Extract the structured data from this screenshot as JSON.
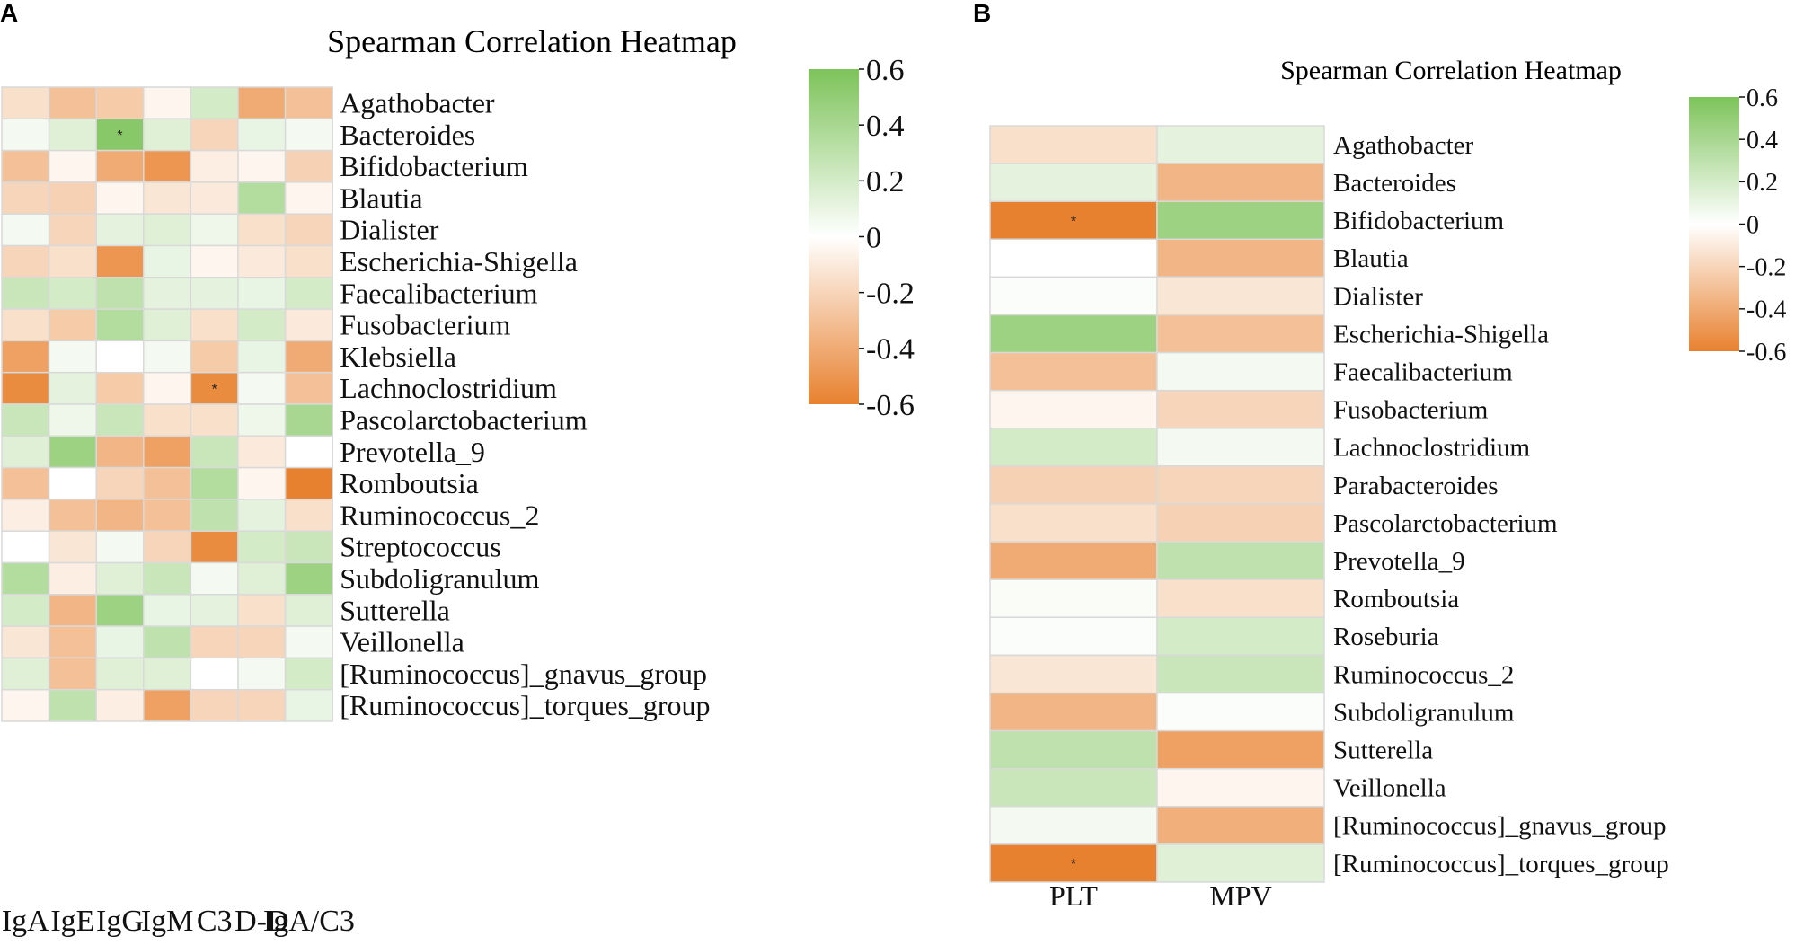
{
  "figure": {
    "panel_a_label": "A",
    "panel_b_label": "B"
  },
  "colors": {
    "positive": "#7DC35A",
    "neutral": "#FFFFFF",
    "negative": "#E8812F",
    "grid": "#D9D9D9",
    "star": "#222222"
  },
  "chart_data": [
    {
      "type": "heatmap",
      "panel": "A",
      "title": "Spearman Correlation Heatmap",
      "columns": [
        "IgA",
        "IgE",
        "IgG",
        "IgM",
        "C3",
        "D-D",
        "IgA/C3"
      ],
      "rows": [
        "Agathobacter",
        "Bacteroides",
        "Bifidobacterium",
        "Blautia",
        "Dialister",
        "Escherichia-Shigella",
        "Faecalibacterium",
        "Fusobacterium",
        "Klebsiella",
        "Lachnoclostridium",
        "Pascolarctobacterium",
        "Prevotella_9",
        "Romboutsia",
        "Ruminococcus_2",
        "Streptococcus",
        "Subdoligranulum",
        "Sutterella",
        "Veillonella",
        "[Ruminococcus]_gnavus_group",
        "[Ruminococcus]_torques_group"
      ],
      "values": [
        [
          -0.15,
          -0.3,
          -0.25,
          -0.05,
          0.2,
          -0.4,
          -0.3
        ],
        [
          0.05,
          0.15,
          0.55,
          0.15,
          -0.2,
          0.1,
          0.05
        ],
        [
          -0.3,
          -0.05,
          -0.4,
          -0.5,
          -0.08,
          -0.05,
          -0.22
        ],
        [
          -0.2,
          -0.22,
          -0.05,
          -0.12,
          -0.1,
          0.35,
          -0.05
        ],
        [
          0.05,
          -0.2,
          0.12,
          0.15,
          0.08,
          -0.15,
          -0.2
        ],
        [
          -0.2,
          -0.15,
          -0.5,
          0.1,
          -0.05,
          -0.1,
          -0.15
        ],
        [
          0.25,
          0.2,
          0.3,
          0.12,
          0.12,
          0.1,
          0.2
        ],
        [
          -0.15,
          -0.25,
          0.35,
          0.15,
          -0.15,
          0.2,
          -0.1
        ],
        [
          -0.45,
          0.05,
          0.0,
          0.05,
          -0.25,
          0.1,
          -0.4
        ],
        [
          -0.55,
          0.12,
          -0.25,
          -0.05,
          -0.55,
          0.05,
          -0.3
        ],
        [
          0.25,
          0.08,
          0.25,
          -0.15,
          -0.15,
          0.08,
          0.4
        ],
        [
          0.15,
          0.45,
          -0.35,
          -0.45,
          0.25,
          -0.1,
          0.0
        ],
        [
          -0.3,
          0.0,
          -0.2,
          -0.3,
          0.35,
          -0.05,
          -0.6
        ],
        [
          -0.08,
          -0.3,
          -0.35,
          -0.3,
          0.3,
          0.12,
          -0.15
        ],
        [
          0.0,
          -0.12,
          0.05,
          -0.2,
          -0.55,
          0.2,
          0.25
        ],
        [
          0.35,
          -0.08,
          0.15,
          0.25,
          0.05,
          0.15,
          0.45
        ],
        [
          0.2,
          -0.35,
          0.45,
          0.1,
          0.12,
          -0.15,
          0.15
        ],
        [
          -0.12,
          -0.3,
          0.1,
          0.3,
          -0.2,
          -0.2,
          0.05
        ],
        [
          0.15,
          -0.3,
          0.15,
          0.15,
          0.0,
          0.05,
          0.2
        ],
        [
          -0.05,
          0.3,
          -0.08,
          -0.45,
          -0.2,
          -0.2,
          0.1
        ]
      ],
      "significant": [
        [
          1,
          2,
          "*"
        ],
        [
          9,
          4,
          "*"
        ]
      ],
      "colorbar": {
        "min": -0.6,
        "max": 0.6,
        "ticks": [
          "0.6",
          "0.4",
          "0.2",
          "0",
          "-0.2",
          "-0.4",
          "-0.6"
        ]
      }
    },
    {
      "type": "heatmap",
      "panel": "B",
      "title": "Spearman Correlation Heatmap",
      "columns": [
        "PLT",
        "MPV"
      ],
      "rows": [
        "Agathobacter",
        "Bacteroides",
        "Bifidobacterium",
        "Blautia",
        "Dialister",
        "Escherichia-Shigella",
        "Faecalibacterium",
        "Fusobacterium",
        "Lachnoclostridium",
        "Parabacteroides",
        "Pascolarctobacterium",
        "Prevotella_9",
        "Romboutsia",
        "Roseburia",
        "Ruminococcus_2",
        "Subdoligranulum",
        "Sutterella",
        "Veillonella",
        "[Ruminococcus]_gnavus_group",
        "[Ruminococcus]_torques_group"
      ],
      "values": [
        [
          -0.15,
          0.12
        ],
        [
          0.12,
          -0.35
        ],
        [
          -0.6,
          0.45
        ],
        [
          0.0,
          -0.35
        ],
        [
          0.02,
          -0.12
        ],
        [
          0.45,
          -0.3
        ],
        [
          -0.3,
          0.05
        ],
        [
          -0.05,
          -0.2
        ],
        [
          0.2,
          0.05
        ],
        [
          -0.22,
          -0.2
        ],
        [
          -0.15,
          -0.22
        ],
        [
          -0.4,
          0.3
        ],
        [
          0.03,
          -0.15
        ],
        [
          0.02,
          0.2
        ],
        [
          -0.12,
          0.25
        ],
        [
          -0.35,
          0.02
        ],
        [
          0.3,
          -0.45
        ],
        [
          0.25,
          -0.05
        ],
        [
          0.05,
          -0.38
        ],
        [
          -0.6,
          0.15
        ]
      ],
      "significant": [
        [
          2,
          0,
          "*"
        ],
        [
          19,
          0,
          "*"
        ]
      ],
      "colorbar": {
        "min": -0.6,
        "max": 0.6,
        "ticks": [
          "0.6",
          "0.4",
          "0.2",
          "0",
          "-0.2",
          "-0.4",
          "-0.6"
        ]
      }
    }
  ]
}
